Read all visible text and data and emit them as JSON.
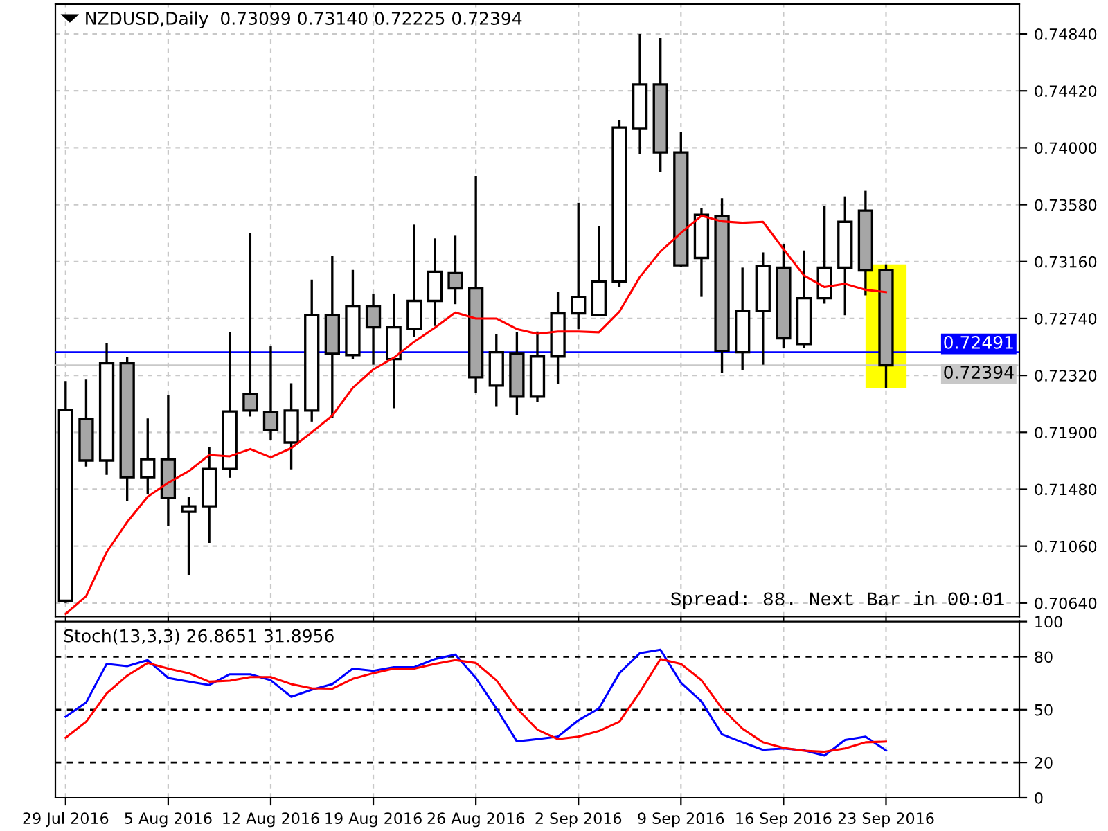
{
  "chart_data": [
    {
      "type": "candlestick",
      "title": "NZDUSD,Daily  0.73099 0.73140 0.72225 0.72394",
      "categories": [
        null,
        null,
        null,
        null,
        null,
        null,
        null,
        null,
        null,
        null,
        null,
        null,
        null,
        null,
        null,
        null,
        null,
        null,
        null,
        null,
        null,
        null,
        null,
        null,
        null,
        null,
        null,
        null,
        null,
        null,
        null,
        null,
        null,
        null,
        null,
        null,
        null,
        null,
        null,
        null,
        null,
        null,
        null,
        null,
        null,
        null,
        null
      ],
      "ohlc": [
        [
          0.70657,
          0.72279,
          0.7064,
          0.72064
        ],
        [
          0.71999,
          0.72289,
          0.71647,
          0.71692
        ],
        [
          0.71692,
          0.72556,
          0.71586,
          0.72409
        ],
        [
          0.72409,
          0.72457,
          0.71391,
          0.71569
        ],
        [
          0.71569,
          0.72002,
          0.71442,
          0.71702
        ],
        [
          0.71702,
          0.72177,
          0.7121,
          0.71415
        ],
        [
          0.71313,
          0.71425,
          0.70848,
          0.71354
        ],
        [
          0.71354,
          0.71791,
          0.71084,
          0.7163
        ],
        [
          0.7163,
          0.72638,
          0.71565,
          0.72054
        ],
        [
          0.72183,
          0.73372,
          0.72016,
          0.72061
        ],
        [
          0.7205,
          0.72535,
          0.71842,
          0.71917
        ],
        [
          0.71825,
          0.72262,
          0.71627,
          0.72061
        ],
        [
          0.72061,
          0.73027,
          0.71979,
          0.72767
        ],
        [
          0.72767,
          0.73201,
          0.72006,
          0.7248
        ],
        [
          0.7247,
          0.73099,
          0.7244,
          0.72829
        ],
        [
          0.72829,
          0.72924,
          0.72399,
          0.72675
        ],
        [
          0.7244,
          0.72924,
          0.72078,
          0.72675
        ],
        [
          0.72665,
          0.73433,
          0.72603,
          0.7287
        ],
        [
          0.7287,
          0.73331,
          0.72685,
          0.73085
        ],
        [
          0.73075,
          0.73351,
          0.72846,
          0.72962
        ],
        [
          0.72962,
          0.73792,
          0.7219,
          0.72306
        ],
        [
          0.72245,
          0.72627,
          0.72088,
          0.72491
        ],
        [
          0.7248,
          0.72638,
          0.72026,
          0.72163
        ],
        [
          0.72163,
          0.72644,
          0.72122,
          0.7246
        ],
        [
          0.7246,
          0.72935,
          0.72255,
          0.72778
        ],
        [
          0.72778,
          0.73594,
          0.72662,
          0.729
        ],
        [
          0.72767,
          0.73423,
          0.72767,
          0.73013
        ],
        [
          0.73013,
          0.74201,
          0.72972,
          0.7415
        ],
        [
          0.7414,
          0.7484,
          0.73952,
          0.74468
        ],
        [
          0.74468,
          0.74809,
          0.73819,
          0.73966
        ],
        [
          0.73966,
          0.7412,
          0.73122,
          0.73133
        ],
        [
          0.73187,
          0.73556,
          0.729,
          0.73505
        ],
        [
          0.73495,
          0.73628,
          0.72337,
          0.72501
        ],
        [
          0.72491,
          0.73116,
          0.72358,
          0.72798
        ],
        [
          0.72798,
          0.73228,
          0.72399,
          0.73126
        ],
        [
          0.73116,
          0.7329,
          0.72522,
          0.72593
        ],
        [
          0.72552,
          0.73242,
          0.72522,
          0.7289
        ],
        [
          0.7289,
          0.7357,
          0.72849,
          0.73116
        ],
        [
          0.73116,
          0.73641,
          0.72764,
          0.73454
        ],
        [
          0.73536,
          0.73682,
          0.72911,
          0.73095
        ],
        [
          0.73099,
          0.7314,
          0.72225,
          0.72394
        ],
        null,
        null,
        null,
        null,
        null,
        null
      ],
      "colors": [
        "#ffffff",
        "#a6a6a6",
        "#ffffff",
        "#a6a6a6",
        "#ffffff",
        "#a6a6a6",
        "#ffffff",
        "#ffffff",
        "#ffffff",
        "#a6a6a6",
        "#a6a6a6",
        "#ffffff",
        "#ffffff",
        "#a6a6a6",
        "#ffffff",
        "#a6a6a6",
        "#ffffff",
        "#ffffff",
        "#ffffff",
        "#a6a6a6",
        "#a6a6a6",
        "#ffffff",
        "#a6a6a6",
        "#ffffff",
        "#ffffff",
        "#ffffff",
        "#ffffff",
        "#ffffff",
        "#ffffff",
        "#a6a6a6",
        "#a6a6a6",
        "#ffffff",
        "#a6a6a6",
        "#ffffff",
        "#ffffff",
        "#a6a6a6",
        "#ffffff",
        "#ffffff",
        "#ffffff",
        "#a6a6a6",
        "#a6a6a6",
        null,
        null,
        null,
        null,
        null,
        null
      ],
      "series": [
        {
          "type": "line",
          "color": "#ff0000",
          "values": [
            0.7056,
            0.70691,
            0.71016,
            0.71238,
            0.71425,
            0.71528,
            0.71613,
            0.71733,
            0.71723,
            0.71777,
            0.71716,
            0.71784,
            0.719,
            0.72023,
            0.72228,
            0.72364,
            0.7245,
            0.72569,
            0.72672,
            0.72784,
            0.7274,
            0.7274,
            0.72662,
            0.72627,
            0.72644,
            0.72644,
            0.72638,
            0.72791,
            0.73047,
            0.73235,
            0.73372,
            0.73498,
            0.73457,
            0.73447,
            0.73454,
            0.73252,
            0.73057,
            0.72972,
            0.72996,
            0.72952,
            0.72935,
            null,
            null,
            null,
            null,
            null,
            null
          ]
        }
      ],
      "ylim": [
        0.7054,
        0.7506
      ],
      "yticks": [
        {
          "value": 0.7064,
          "label": "0.70640"
        },
        {
          "value": 0.7106,
          "label": "0.71060"
        },
        {
          "value": 0.7148,
          "label": "0.71480"
        },
        {
          "value": 0.719,
          "label": "0.71900"
        },
        {
          "value": 0.7232,
          "label": "0.72320"
        },
        {
          "value": 0.7274,
          "label": "0.72740"
        },
        {
          "value": 0.7316,
          "label": "0.73160"
        },
        {
          "value": 0.7358,
          "label": "0.73580"
        },
        {
          "value": 0.74,
          "label": "0.74000"
        },
        {
          "value": 0.7442,
          "label": "0.74420"
        },
        {
          "value": 0.7484,
          "label": "0.74840"
        }
      ],
      "ref_lines": [
        {
          "axis": "y",
          "value": 0.72491,
          "label": "0.72491",
          "color": "#0000ff",
          "line_style": "solid"
        },
        {
          "axis": "y",
          "value": 0.72394,
          "label": "0.72394",
          "color": "#c8c8c8",
          "line_style": "solid"
        }
      ],
      "annotations": [
        "Spread: 88. Next Bar in 00:01"
      ],
      "grid": true,
      "tick_labels": "y"
    },
    {
      "type": "line",
      "title": "Stoch(13,3,3) 26.8651 31.8956",
      "categories": [
        "29 Jul 2016",
        null,
        null,
        null,
        null,
        "5 Aug 2016",
        null,
        null,
        null,
        null,
        "12 Aug 2016",
        null,
        null,
        null,
        null,
        "19 Aug 2016",
        null,
        null,
        null,
        null,
        "26 Aug 2016",
        null,
        null,
        null,
        null,
        "2 Sep 2016",
        null,
        null,
        null,
        null,
        "9 Sep 2016",
        null,
        null,
        null,
        null,
        "16 Sep 2016",
        null,
        null,
        null,
        null,
        "23 Sep 2016",
        null,
        null,
        null,
        null,
        null,
        null
      ],
      "series": [
        {
          "color": "#0000ff",
          "values": [
            46,
            54.1,
            76,
            74.7,
            78.1,
            68,
            65.9,
            64,
            70.1,
            70.1,
            66.7,
            57.3,
            61.3,
            64.5,
            73.3,
            72,
            74.1,
            74.1,
            78.7,
            81.3,
            68,
            50.7,
            32,
            33.3,
            34.7,
            44,
            50.7,
            70.7,
            82.1,
            84,
            65.3,
            54.7,
            36,
            31.5,
            27.2,
            28,
            26.9,
            24,
            32.8,
            34.7,
            26.8651,
            null,
            null,
            null,
            null,
            null,
            null
          ]
        },
        {
          "color": "#ff0000",
          "values": [
            34.1,
            43.2,
            59.2,
            69.3,
            76.5,
            73.3,
            70.7,
            65.9,
            66.4,
            68.5,
            68.5,
            64.5,
            62.1,
            61.9,
            67.5,
            70.7,
            73.3,
            73.3,
            76,
            78.1,
            76.5,
            66.7,
            50.7,
            38.7,
            33.3,
            34.7,
            37.9,
            43.2,
            60,
            78.7,
            76,
            66.7,
            50.7,
            39.2,
            31.5,
            28.3,
            26.7,
            26.1,
            28,
            31.5,
            31.8956,
            null,
            null,
            null,
            null,
            null,
            null
          ]
        }
      ],
      "ylim": [
        0,
        100
      ],
      "yticks": [
        0,
        20,
        50,
        80,
        100
      ],
      "ref_lines": [
        {
          "axis": "y",
          "value": 80,
          "color": "#000000",
          "line_style": "dashed"
        },
        {
          "axis": "y",
          "value": 50,
          "color": "#000000",
          "line_style": "dashed"
        },
        {
          "axis": "y",
          "value": 20,
          "color": "#000000",
          "line_style": "dashed"
        }
      ],
      "grid": "x"
    }
  ]
}
